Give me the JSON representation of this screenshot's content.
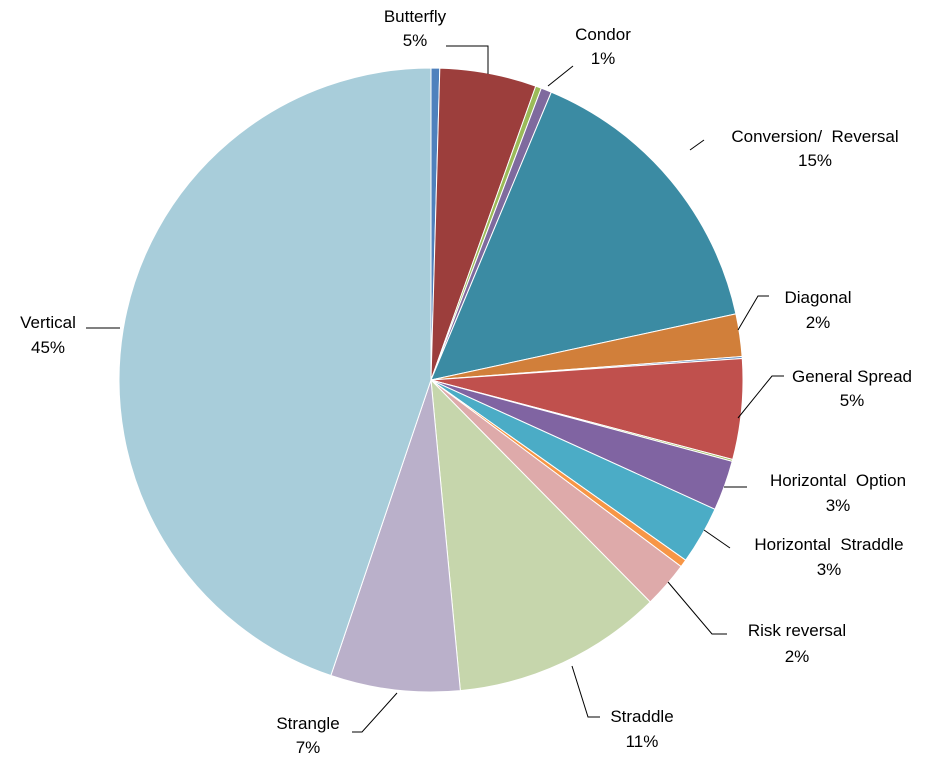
{
  "chart_data": {
    "type": "pie",
    "title": "",
    "start_angle_deg": 0,
    "direction": "clockwise",
    "slices": [
      {
        "name": "",
        "label": "",
        "pct_label": "",
        "value": 0.45,
        "color": "#4F81BD"
      },
      {
        "name": "Butterfly",
        "label": "Butterfly",
        "pct_label": "5%",
        "value": 5.0,
        "color": "#9C3E3C"
      },
      {
        "name": "",
        "label": "",
        "pct_label": "",
        "value": 0.3,
        "color": "#9BBB59"
      },
      {
        "name": "Condor",
        "label": "Condor",
        "pct_label": "1%",
        "value": 0.55,
        "color": "#7F6A9E"
      },
      {
        "name": "Conversion/ Reversal",
        "label": "Conversion/  Reversal",
        "pct_label": "15%",
        "value": 15.3,
        "color": "#3B8BA3"
      },
      {
        "name": "Diagonal",
        "label": "Diagonal",
        "pct_label": "2%",
        "value": 2.2,
        "color": "#D17F3A"
      },
      {
        "name": "",
        "label": "",
        "pct_label": "",
        "value": 0.1,
        "color": "#4F81BD"
      },
      {
        "name": "General Spread",
        "label": "General Spread",
        "pct_label": "5%",
        "value": 5.2,
        "color": "#C0504D"
      },
      {
        "name": "",
        "label": "",
        "pct_label": "",
        "value": 0.1,
        "color": "#9BBB59"
      },
      {
        "name": "Horizontal Option",
        "label": "Horizontal  Option",
        "pct_label": "3%",
        "value": 2.6,
        "color": "#8064A2"
      },
      {
        "name": "Horizontal Straddle",
        "label": "Horizontal  Straddle",
        "pct_label": "3%",
        "value": 3.0,
        "color": "#4BACC6"
      },
      {
        "name": "",
        "label": "",
        "pct_label": "",
        "value": 0.4,
        "color": "#F79646"
      },
      {
        "name": "Risk reversal",
        "label": "Risk reversal",
        "pct_label": "2%",
        "value": 2.4,
        "color": "#DEAAAA"
      },
      {
        "name": "Straddle",
        "label": "Straddle",
        "pct_label": "11%",
        "value": 10.9,
        "color": "#C6D6AC"
      },
      {
        "name": "Strangle",
        "label": "Strangle",
        "pct_label": "7%",
        "value": 6.7,
        "color": "#BAB0CA"
      },
      {
        "name": "Vertical",
        "label": "Vertical",
        "pct_label": "45%",
        "value": 44.8,
        "color": "#A8CDDA"
      }
    ]
  }
}
